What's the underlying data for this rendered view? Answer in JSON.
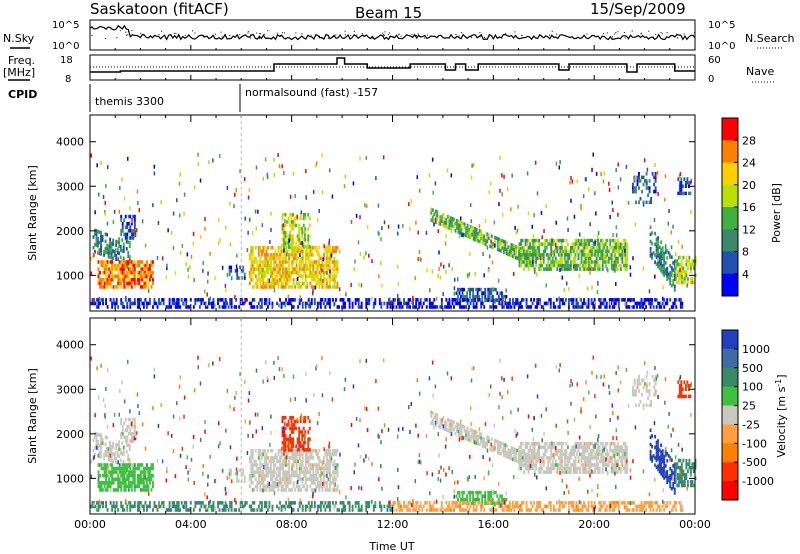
{
  "header": {
    "title": "Saskatoon (fitACF)",
    "beam": "Beam 15",
    "date": "15/Sep/2009"
  },
  "top_panels": {
    "nsky_label": "N.Sky",
    "nsearch_label": "N.Search",
    "nsky_ticks": [
      "10^5",
      "10^0"
    ],
    "nsearch_ticks": [
      "10^5",
      "10^0"
    ],
    "freq_label_1": "Freq.",
    "freq_label_2": "[MHz]",
    "freq_ticks": [
      "18",
      "8"
    ],
    "nave_label": "Nave",
    "nave_ticks": [
      "60",
      "0"
    ],
    "cpid_label": "CPID",
    "cpid_segments": [
      {
        "label": "themis 3300",
        "start_hour": 0
      },
      {
        "label": "normalsound (fast) -157",
        "start_hour": 6
      }
    ]
  },
  "chart_data": [
    {
      "type": "heatmap",
      "name": "power",
      "ylabel": "Slant Range [km]",
      "yticks": [
        1000,
        2000,
        3000,
        4000
      ],
      "ylim": [
        200,
        4600
      ],
      "xlim": [
        0,
        24
      ],
      "colorbar": {
        "label": "Power [dB]",
        "ticks": [
          "28",
          "24",
          "20",
          "16",
          "12",
          "8",
          "4"
        ],
        "colors": [
          "#ff0000",
          "#ff8000",
          "#ffd000",
          "#b8e000",
          "#40b040",
          "#3a8a6a",
          "#2050b0",
          "#0000ff"
        ]
      }
    },
    {
      "type": "heatmap",
      "name": "velocity",
      "ylabel": "Slant Range [km]",
      "yticks": [
        1000,
        2000,
        3000,
        4000
      ],
      "ylim": [
        200,
        4600
      ],
      "xlim": [
        0,
        24
      ],
      "xlabel": "Time UT",
      "xticks": [
        "00:00",
        "04:00",
        "08:00",
        "12:00",
        "16:00",
        "20:00",
        "00:00"
      ],
      "colorbar": {
        "label": "Velocity [m s",
        "label_sup": "-1",
        "label_end": "]",
        "ticks": [
          "1000",
          "500",
          "100",
          "25",
          "-25",
          "-100",
          "-500",
          "-1000"
        ],
        "colors": [
          "#2040c0",
          "#3f6aa8",
          "#3a8a6a",
          "#40c040",
          "#c8c8c0",
          "#ffa040",
          "#ff8000",
          "#ff3000",
          "#ff0000"
        ]
      }
    }
  ]
}
